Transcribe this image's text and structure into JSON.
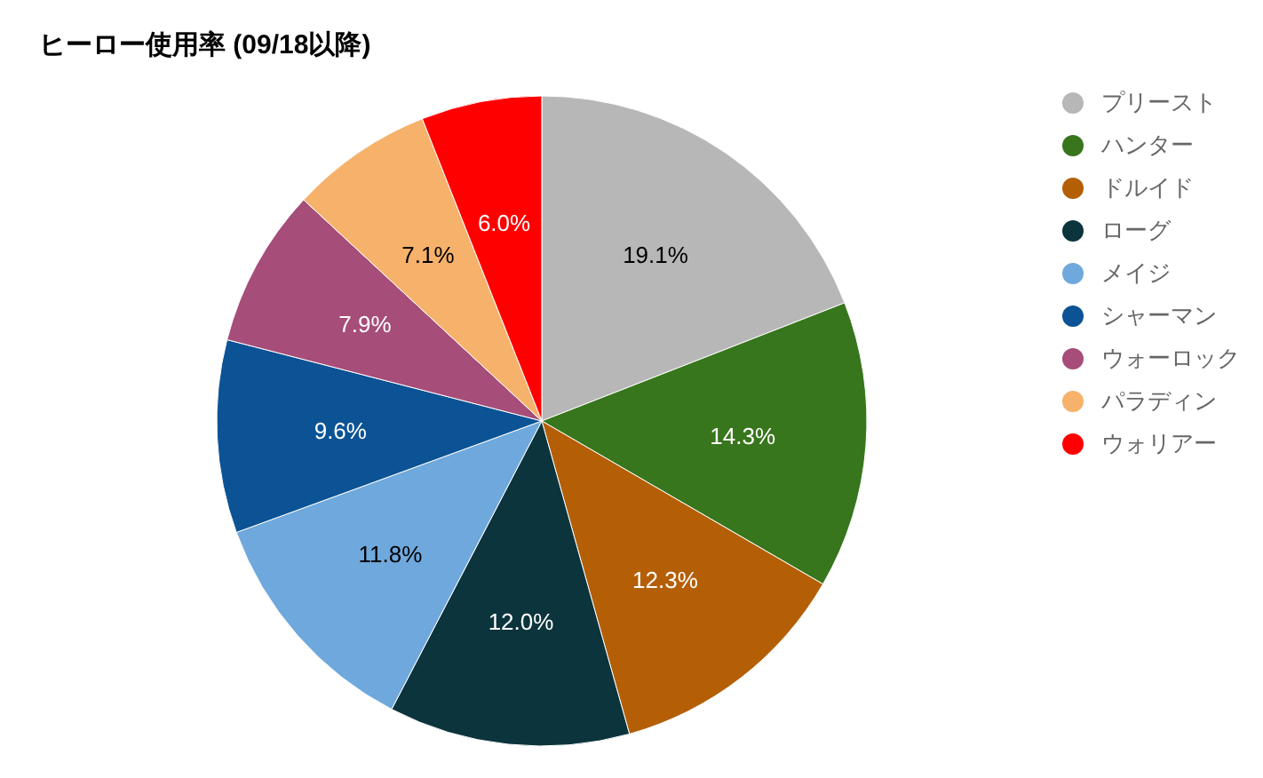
{
  "chart_data": {
    "type": "pie",
    "title": "ヒーロー使用率 (09/18以降)",
    "categories": [
      "プリースト",
      "ハンター",
      "ドルイド",
      "ローグ",
      "メイジ",
      "シャーマン",
      "ウォーロック",
      "パラディン",
      "ウォリアー"
    ],
    "values": [
      19.1,
      14.3,
      12.3,
      12.0,
      11.8,
      9.6,
      7.9,
      7.1,
      6.0
    ],
    "value_labels": [
      "19.1%",
      "14.3%",
      "12.3%",
      "12.0%",
      "11.8%",
      "9.6%",
      "7.9%",
      "7.1%",
      "6.0%"
    ],
    "colors": [
      "#b7b7b7",
      "#38761d",
      "#b45f06",
      "#0c343d",
      "#6fa8dc",
      "#0b5394",
      "#a64d79",
      "#f6b26b",
      "#ff0000"
    ],
    "legend": "top right"
  }
}
